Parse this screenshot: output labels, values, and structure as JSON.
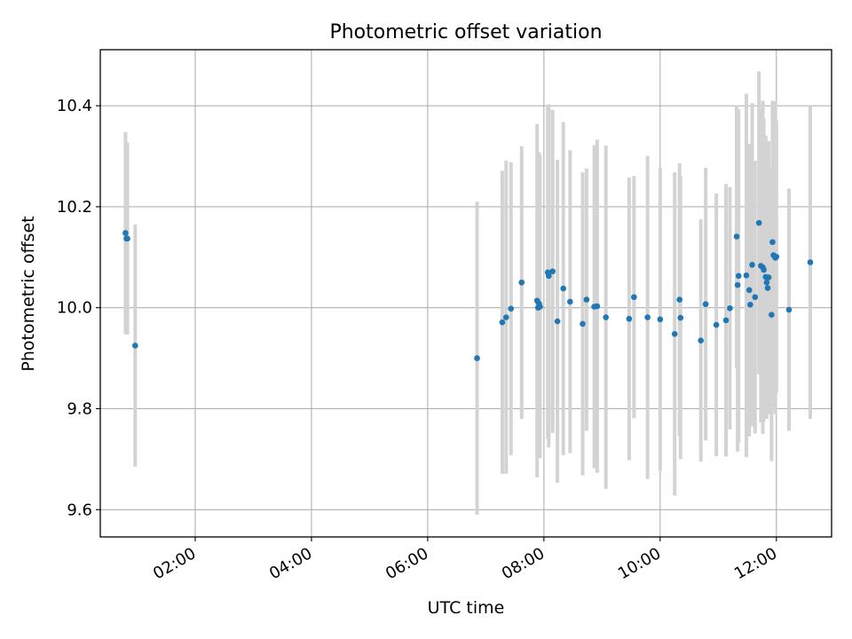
{
  "chart_data": {
    "type": "scatter",
    "title": "Photometric offset variation",
    "xlabel": "UTC time",
    "ylabel": "Photometric offset",
    "x_unit": "HH:MM",
    "xlim": [
      "00:22",
      "12:57"
    ],
    "ylim": [
      9.546,
      10.511
    ],
    "x_ticks": [
      "02:00",
      "04:00",
      "06:00",
      "08:00",
      "10:00",
      "12:00"
    ],
    "y_ticks": [
      9.6,
      9.8,
      10.0,
      10.2,
      10.4
    ],
    "grid": true,
    "legend": "none",
    "series": [
      {
        "marker_color": "#1f77b4",
        "errorbar_color": "#d3d3d3",
        "x": [
          "00:48",
          "00:49",
          "00:50",
          "00:58",
          "06:51",
          "07:17",
          "07:21",
          "07:26",
          "07:37",
          "07:53",
          "07:54",
          "07:55",
          "07:56",
          "08:04",
          "08:05",
          "08:09",
          "08:14",
          "08:20",
          "08:27",
          "08:40",
          "08:44",
          "08:52",
          "08:55",
          "09:04",
          "09:28",
          "09:33",
          "09:47",
          "10:00",
          "10:15",
          "10:20",
          "10:21",
          "10:42",
          "10:47",
          "10:58",
          "11:08",
          "11:12",
          "11:19",
          "11:20",
          "11:21",
          "11:29",
          "11:32",
          "11:33",
          "11:35",
          "11:38",
          "11:42",
          "11:44",
          "11:46",
          "11:47",
          "11:49",
          "11:50",
          "11:51",
          "11:52",
          "11:55",
          "11:56",
          "11:57",
          "11:59",
          "12:00",
          "12:13",
          "12:35"
        ],
        "y": [
          10.148,
          10.137,
          10.137,
          9.925,
          9.9,
          9.971,
          9.981,
          9.998,
          10.05,
          10.014,
          10.0,
          10.008,
          10.002,
          10.07,
          10.063,
          10.072,
          9.973,
          10.038,
          10.012,
          9.968,
          10.016,
          10.002,
          10.003,
          9.981,
          9.978,
          10.021,
          9.981,
          9.977,
          9.948,
          10.016,
          9.98,
          9.935,
          10.007,
          9.966,
          9.975,
          9.999,
          10.141,
          10.045,
          10.063,
          10.064,
          10.035,
          10.006,
          10.085,
          10.021,
          10.168,
          10.083,
          10.08,
          10.075,
          10.061,
          10.05,
          10.039,
          10.06,
          9.986,
          10.13,
          10.104,
          10.099,
          10.101,
          9.996,
          10.09
        ],
        "err": [
          0.2,
          0.19,
          0.19,
          0.24,
          0.31,
          0.3,
          0.31,
          0.29,
          0.27,
          0.35,
          0.29,
          0.3,
          0.3,
          0.33,
          0.34,
          0.32,
          0.32,
          0.33,
          0.3,
          0.3,
          0.26,
          0.32,
          0.33,
          0.34,
          0.28,
          0.24,
          0.32,
          0.3,
          0.32,
          0.27,
          0.28,
          0.24,
          0.27,
          0.26,
          0.27,
          0.24,
          0.26,
          0.33,
          0.33,
          0.36,
          0.29,
          0.22,
          0.32,
          0.27,
          0.3,
          0.31,
          0.33,
          0.3,
          0.28,
          0.27,
          0.25,
          0.27,
          0.29,
          0.28,
          0.3,
          0.31,
          0.27,
          0.24,
          0.31
        ]
      }
    ]
  }
}
